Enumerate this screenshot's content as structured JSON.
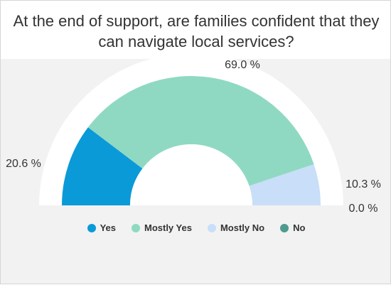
{
  "chart_data": {
    "type": "pie",
    "subtype": "semi-donut",
    "title": "At the end of support, are families confident that they can navigate local services?",
    "categories": [
      "Yes",
      "Mostly Yes",
      "Mostly No",
      "No"
    ],
    "values": [
      20.6,
      69.0,
      10.3,
      0.0
    ],
    "value_labels": [
      "20.6 %",
      "69.0 %",
      "10.3 %",
      "0.0 %"
    ],
    "colors": [
      "#0a9ad8",
      "#8fd9c2",
      "#c9def8",
      "#4f9a90"
    ],
    "legend_position": "bottom"
  }
}
